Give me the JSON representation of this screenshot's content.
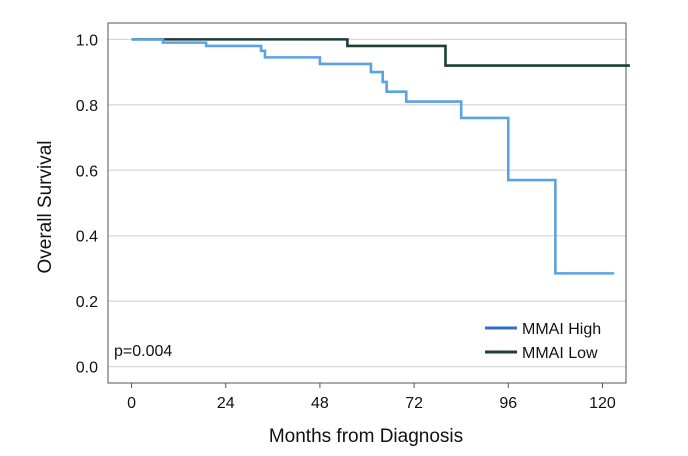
{
  "chart_data": {
    "type": "line",
    "xlabel": "Months from Diagnosis",
    "ylabel": "Overall Survival",
    "xlim": [
      -6,
      126
    ],
    "ylim": [
      -0.05,
      1.05
    ],
    "x_ticks": [
      0,
      24,
      48,
      72,
      96,
      120
    ],
    "x_tick_labels": [
      "0",
      "24",
      "48",
      "72",
      "96",
      "120"
    ],
    "y_ticks": [
      0.0,
      0.2,
      0.4,
      0.6,
      0.8,
      1.0
    ],
    "y_tick_labels": [
      "0.0",
      "0.2",
      "0.4",
      "0.6",
      "0.8",
      "1.0"
    ],
    "grid": "horizontal",
    "legend_position": "bottom-right",
    "annotation": "p=0.004",
    "series": [
      {
        "name": "MMAI High",
        "color": "#5ba3e0",
        "legend_color": "#2f6fc4",
        "step": true,
        "x": [
          0,
          8,
          19,
          33,
          34,
          48,
          61,
          64,
          65,
          66,
          70,
          84,
          96,
          108,
          123
        ],
        "y": [
          1.0,
          0.99,
          0.98,
          0.965,
          0.945,
          0.925,
          0.9,
          0.87,
          0.84,
          0.84,
          0.81,
          0.76,
          0.57,
          0.285,
          0.285
        ]
      },
      {
        "name": "MMAI Low",
        "color": "#1f3d3a",
        "legend_color": "#1f3d3a",
        "step": true,
        "x": [
          0,
          55,
          80,
          127
        ],
        "y": [
          1.0,
          0.98,
          0.92,
          0.92
        ]
      }
    ]
  }
}
